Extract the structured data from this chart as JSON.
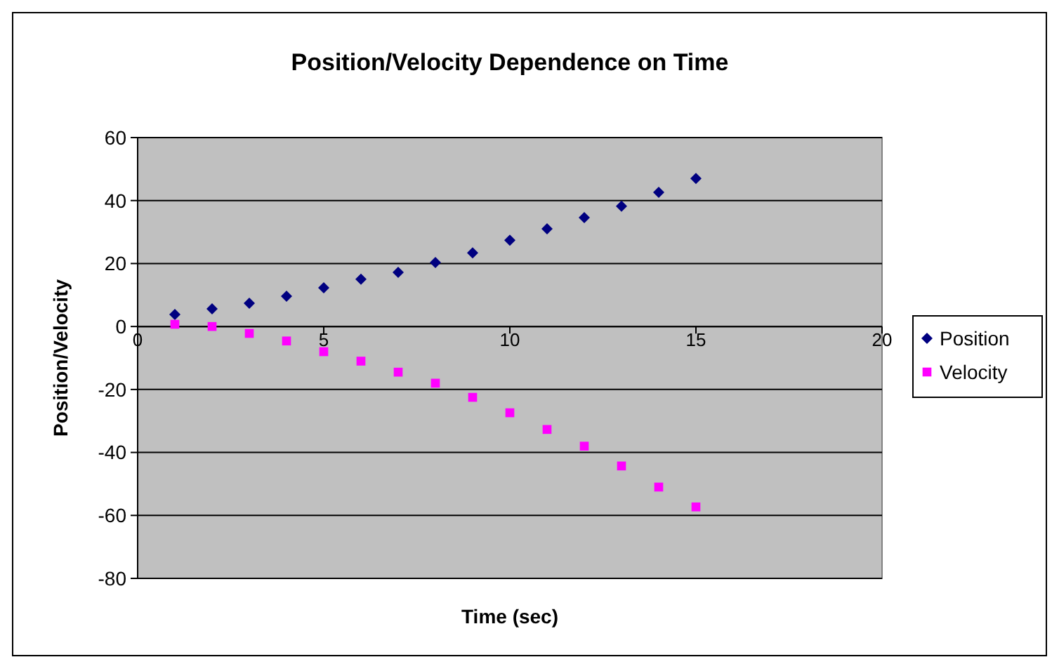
{
  "chart_data": {
    "type": "scatter",
    "title": "Position/Velocity Dependence on Time",
    "xlabel": "Time (sec)",
    "ylabel": "Position/Velocity",
    "x": [
      1,
      2,
      3,
      4,
      5,
      6,
      7,
      8,
      9,
      10,
      11,
      12,
      13,
      14,
      15
    ],
    "series": [
      {
        "name": "Position",
        "color": "#000080",
        "marker": "diamond",
        "values": [
          3.8,
          5.6,
          7.4,
          9.6,
          12.3,
          15,
          17.2,
          20.3,
          23.4,
          27.4,
          31,
          34.6,
          38.2,
          42.6,
          47
        ]
      },
      {
        "name": "Velocity",
        "color": "#ff00ff",
        "marker": "square",
        "values": [
          0.7,
          0,
          -2.2,
          -4.6,
          -8,
          -11,
          -14.5,
          -18,
          -22.5,
          -27.4,
          -32.7,
          -38,
          -44.3,
          -51,
          -57.3
        ]
      }
    ],
    "xlim": [
      0,
      20
    ],
    "xticks": [
      0,
      5,
      10,
      15,
      20
    ],
    "ylim": [
      -80,
      60
    ],
    "yticks": [
      -80,
      -60,
      -40,
      -20,
      0,
      20,
      40,
      60
    ],
    "grid": "y",
    "legend": "right"
  }
}
